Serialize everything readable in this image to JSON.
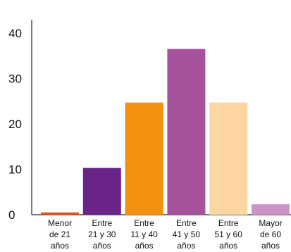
{
  "chart_data": {
    "type": "bar",
    "categories": [
      [
        "Menor",
        "de 21",
        "años"
      ],
      [
        "Entre",
        "21 y 30",
        "años"
      ],
      [
        "Entre",
        "11 y 40",
        "años"
      ],
      [
        "Entre",
        "41 y 50",
        "años"
      ],
      [
        "Entre",
        "51 y 60",
        "años"
      ],
      [
        "Mayor",
        "de 60",
        "años"
      ]
    ],
    "values": [
      0.5,
      10.3,
      24.7,
      36.5,
      24.7,
      2.3
    ],
    "colors": [
      "#d9541e",
      "#6a2386",
      "#f2900f",
      "#a5529a",
      "#fbd6a3",
      "#cc94c8"
    ],
    "ylim": [
      0,
      40
    ],
    "yticks": [
      0,
      10,
      20,
      30,
      40
    ],
    "title": "",
    "xlabel": "",
    "ylabel": "",
    "grid": false,
    "legend": "none"
  }
}
